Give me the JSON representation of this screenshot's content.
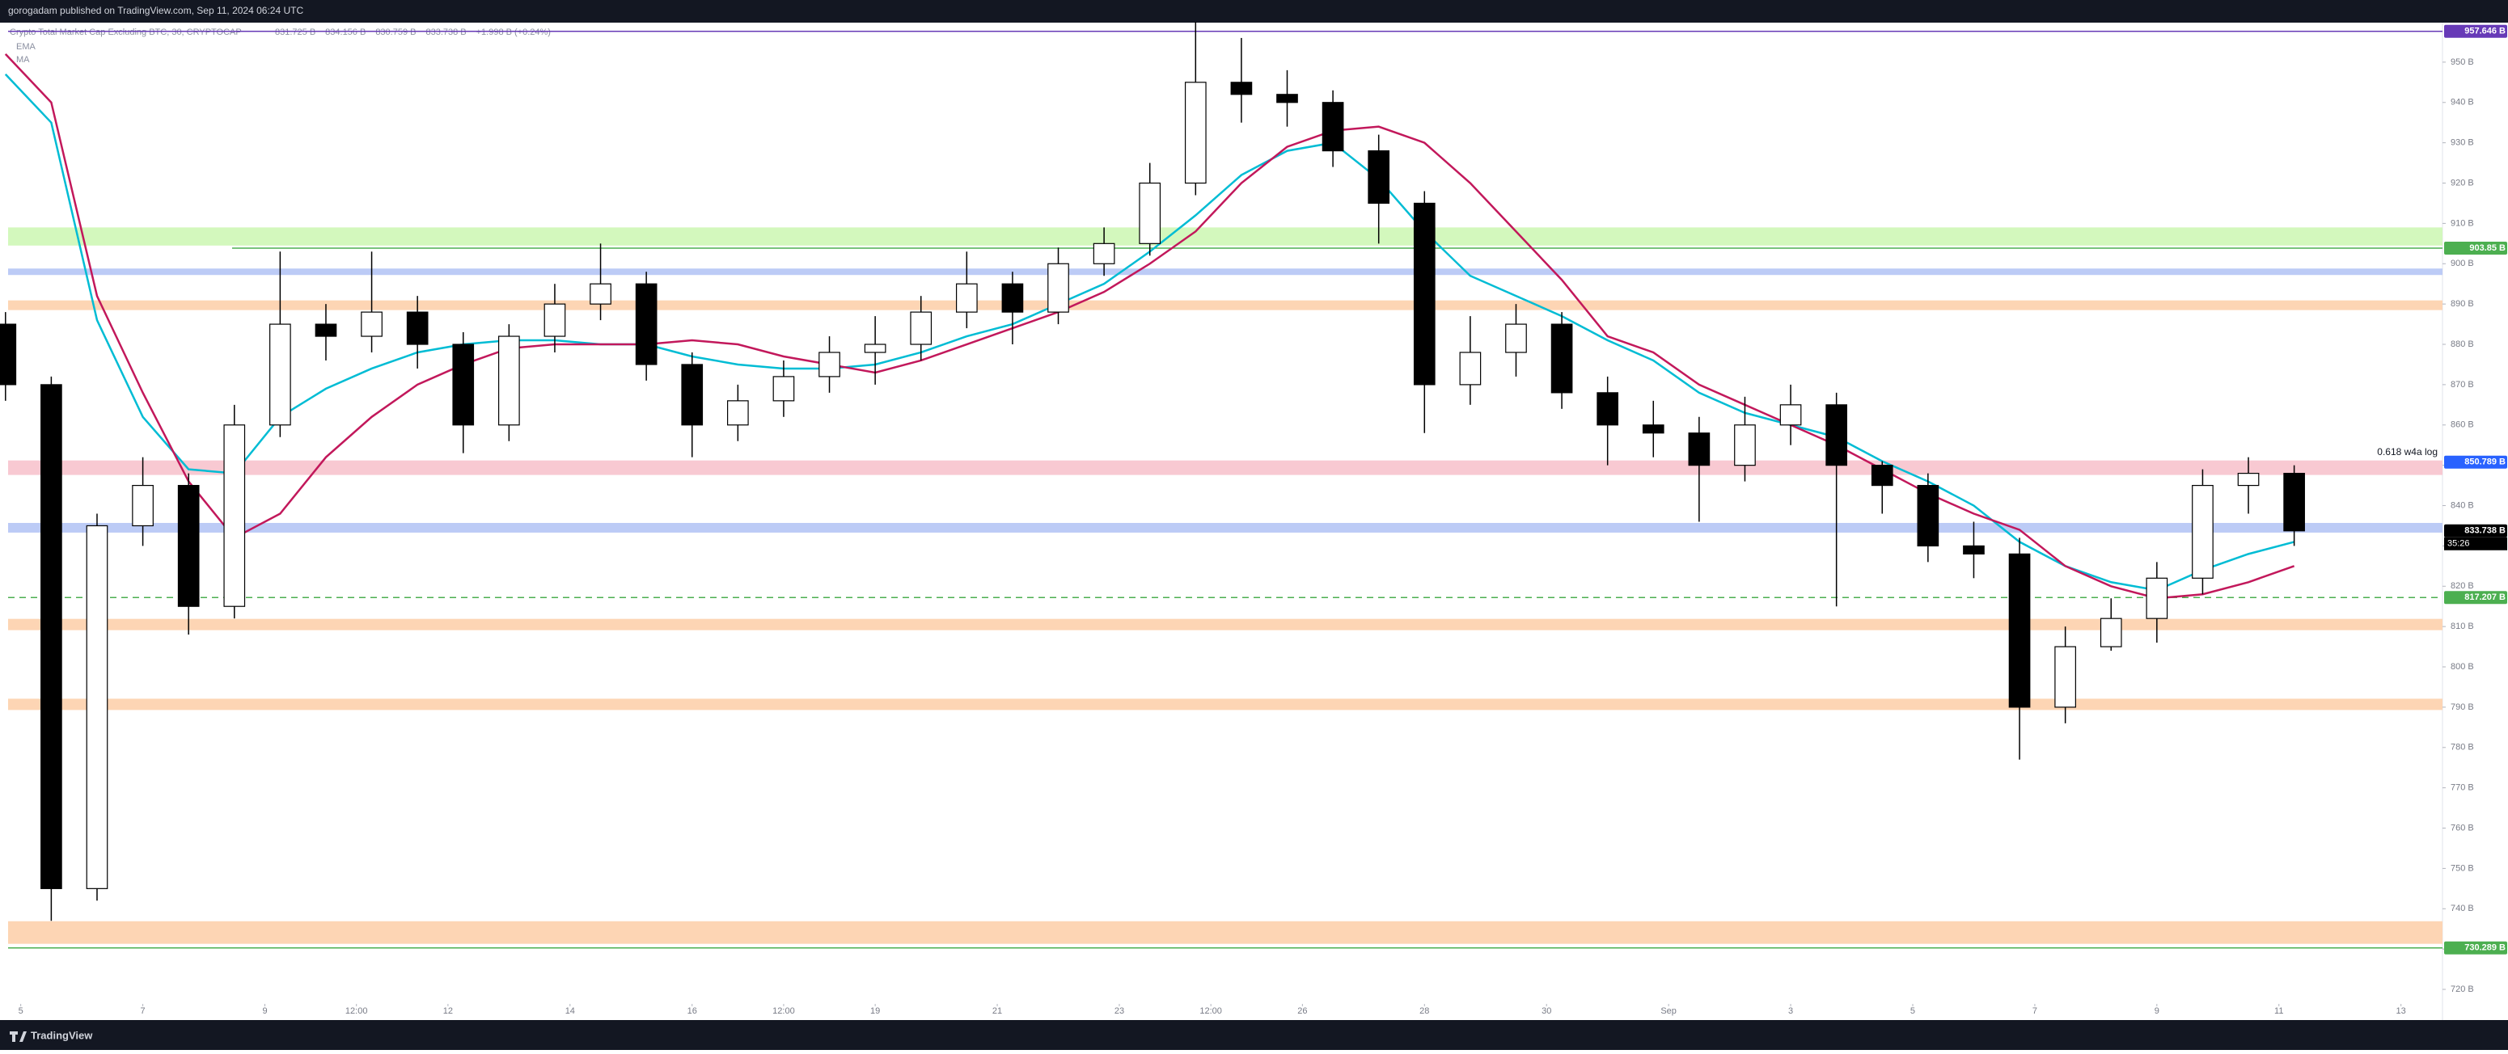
{
  "header": {
    "text": "gorogadam published on TradingView.com, Sep 11, 2024 06:24 UTC"
  },
  "footer": {
    "brand": "TradingView"
  },
  "chart_data": {
    "type": "candlestick",
    "title": "Crypto Total Market Cap Excluding BTC, 30, CRYPTOCAP",
    "ohlc_readout": [
      "831.725 B",
      "834.156 B",
      "830.759 B",
      "833.738 B",
      "+1.998 B (+0.24%)"
    ],
    "x": [
      -0.25,
      0.5,
      1.25,
      2,
      2.75,
      3.5,
      4.25,
      5,
      5.75,
      6.5,
      7.25,
      8,
      8.75,
      9.5,
      10.25,
      11,
      11.75,
      12.5,
      13.25,
      14,
      14.75,
      15.5,
      16.25,
      17,
      17.75,
      18.5,
      19.25,
      20,
      20.75,
      21.5,
      22.25,
      23,
      23.75,
      24.5,
      25.25,
      26,
      26.75,
      27.5,
      28.25,
      29,
      29.75,
      30.5,
      31.25,
      32,
      32.75,
      33.5,
      34.25,
      35,
      35.75,
      36.5,
      37.25
    ],
    "open": [
      885,
      870,
      745,
      835,
      845,
      815,
      860,
      885,
      882,
      888,
      880,
      860,
      882,
      890,
      895,
      875,
      860,
      866,
      872,
      878,
      880,
      888,
      895,
      888,
      900,
      905,
      920,
      945,
      942,
      940,
      928,
      915,
      870,
      878,
      885,
      868,
      860,
      858,
      850,
      860,
      865,
      850,
      845,
      830,
      828,
      790,
      805,
      812,
      822,
      845,
      848
    ],
    "high": [
      888,
      872,
      838,
      852,
      848,
      865,
      903,
      890,
      903,
      892,
      883,
      885,
      895,
      905,
      898,
      878,
      870,
      876,
      882,
      887,
      892,
      903,
      898,
      904,
      909,
      925,
      960,
      956,
      948,
      943,
      932,
      918,
      887,
      890,
      888,
      872,
      866,
      862,
      867,
      870,
      868,
      851,
      848,
      836,
      832,
      810,
      817,
      826,
      849,
      852,
      850
    ],
    "low": [
      866,
      737,
      742,
      830,
      808,
      812,
      857,
      876,
      878,
      874,
      853,
      856,
      878,
      886,
      871,
      852,
      856,
      862,
      868,
      870,
      876,
      884,
      880,
      885,
      897,
      902,
      917,
      935,
      934,
      924,
      905,
      858,
      865,
      872,
      864,
      850,
      852,
      836,
      846,
      855,
      815,
      838,
      826,
      822,
      777,
      786,
      804,
      806,
      818,
      838,
      830
    ],
    "close": [
      870,
      745,
      835,
      845,
      815,
      860,
      885,
      882,
      888,
      880,
      860,
      882,
      890,
      895,
      875,
      860,
      866,
      872,
      878,
      880,
      888,
      895,
      888,
      900,
      905,
      920,
      945,
      942,
      940,
      928,
      915,
      870,
      878,
      885,
      868,
      860,
      858,
      850,
      860,
      865,
      850,
      845,
      830,
      828,
      790,
      805,
      812,
      822,
      845,
      848,
      833.738
    ],
    "up_color": "#ffffff",
    "down_color": "#000000",
    "series": [
      {
        "name": "EMA",
        "color": "#00bcd4",
        "values": [
          947,
          935,
          886,
          862,
          849,
          848,
          862,
          869,
          874,
          878,
          880,
          881,
          881,
          880,
          880,
          877,
          875,
          874,
          874,
          875,
          878,
          882,
          885,
          890,
          895,
          903,
          912,
          922,
          928,
          930,
          921,
          908,
          897,
          892,
          887,
          881,
          876,
          868,
          863,
          860,
          857,
          851,
          846,
          840,
          831,
          825,
          821,
          819,
          824,
          828,
          831
        ]
      },
      {
        "name": "MA",
        "color": "#c2185b",
        "values": [
          952,
          940,
          892,
          868,
          846,
          832,
          838,
          852,
          862,
          870,
          875,
          879,
          880,
          880,
          880,
          881,
          880,
          877,
          875,
          873,
          876,
          880,
          884,
          888,
          893,
          900,
          908,
          920,
          929,
          933,
          934,
          930,
          920,
          908,
          896,
          882,
          878,
          870,
          865,
          860,
          855,
          849,
          843,
          838,
          834,
          825,
          820,
          817,
          818,
          821,
          825
        ]
      }
    ],
    "zones": [
      {
        "low": 904.5,
        "high": 909,
        "color": "#d3f8bd"
      },
      {
        "low": 897.2,
        "high": 898.8,
        "color": "#bccbf6"
      },
      {
        "low": 888.5,
        "high": 890.9,
        "color": "#fdd5b4"
      },
      {
        "low": 847.6,
        "high": 851.2,
        "color": "#f8c9d2"
      },
      {
        "low": 833.3,
        "high": 835.7,
        "color": "#bccbf6"
      },
      {
        "low": 809.1,
        "high": 811.9,
        "color": "#fdd5b4"
      },
      {
        "low": 789.3,
        "high": 792.1,
        "color": "#fdd5b4"
      },
      {
        "low": 731.3,
        "high": 736.9,
        "color": "#fdd5b4"
      }
    ],
    "levels": [
      {
        "value": 957.646,
        "label": "957.646 B",
        "color": "#673ab7",
        "style": "solid"
      },
      {
        "value": 903.85,
        "label": "903.85 B",
        "color": "#4caf50",
        "style": "solid"
      },
      {
        "value": 850.789,
        "label": "850.789 B",
        "color": "#2962ff",
        "style": "none"
      },
      {
        "value": 833.738,
        "label": "833.738 B",
        "color": "#000000",
        "style": "none"
      },
      {
        "value": 817.207,
        "label": "817.207 B",
        "color": "#4caf50",
        "style": "dashed"
      },
      {
        "value": 730.289,
        "label": "730.289 B",
        "color": "#4caf50",
        "style": "solid"
      }
    ],
    "countdown": "35:26",
    "annotation": "0.618  w4a log",
    "xlim": [
      -0.34,
      39.68
    ],
    "ylim": [
      716.8,
      959.8
    ],
    "xticks": [
      {
        "value": 0,
        "label": "5"
      },
      {
        "value": 2,
        "label": "7"
      },
      {
        "value": 4,
        "label": "9"
      },
      {
        "value": 5.5,
        "label": "12:00"
      },
      {
        "value": 7,
        "label": "12"
      },
      {
        "value": 9,
        "label": "14"
      },
      {
        "value": 11,
        "label": "16"
      },
      {
        "value": 12.5,
        "label": "12:00"
      },
      {
        "value": 14,
        "label": "19"
      },
      {
        "value": 16,
        "label": "21"
      },
      {
        "value": 18,
        "label": "23"
      },
      {
        "value": 19.5,
        "label": "12:00"
      },
      {
        "value": 21,
        "label": "26"
      },
      {
        "value": 23,
        "label": "28"
      },
      {
        "value": 25,
        "label": "30"
      },
      {
        "value": 27,
        "label": "Sep"
      },
      {
        "value": 29,
        "label": "3"
      },
      {
        "value": 31,
        "label": "5"
      },
      {
        "value": 33,
        "label": "7"
      },
      {
        "value": 35,
        "label": "9"
      },
      {
        "value": 37,
        "label": "11"
      },
      {
        "value": 39,
        "label": "13"
      }
    ],
    "yticks": [
      {
        "value": 720,
        "label": "720 B"
      },
      {
        "value": 730,
        "label": "730 B"
      },
      {
        "value": 740,
        "label": "740 B"
      },
      {
        "value": 750,
        "label": "750 B"
      },
      {
        "value": 760,
        "label": "760 B"
      },
      {
        "value": 770,
        "label": "770 B"
      },
      {
        "value": 780,
        "label": "780 B"
      },
      {
        "value": 790,
        "label": "790 B"
      },
      {
        "value": 800,
        "label": "800 B"
      },
      {
        "value": 810,
        "label": "810 B"
      },
      {
        "value": 820,
        "label": "820 B"
      },
      {
        "value": 830,
        "label": "830 B"
      },
      {
        "value": 840,
        "label": "840 B"
      },
      {
        "value": 850,
        "label": "850 B"
      },
      {
        "value": 860,
        "label": "860 B"
      },
      {
        "value": 870,
        "label": "870 B"
      },
      {
        "value": 880,
        "label": "880 B"
      },
      {
        "value": 890,
        "label": "890 B"
      },
      {
        "value": 900,
        "label": "900 B"
      },
      {
        "value": 910,
        "label": "910 B"
      },
      {
        "value": 920,
        "label": "920 B"
      },
      {
        "value": 930,
        "label": "930 B"
      },
      {
        "value": 940,
        "label": "940 B"
      },
      {
        "value": 950,
        "label": "950 B"
      }
    ]
  }
}
